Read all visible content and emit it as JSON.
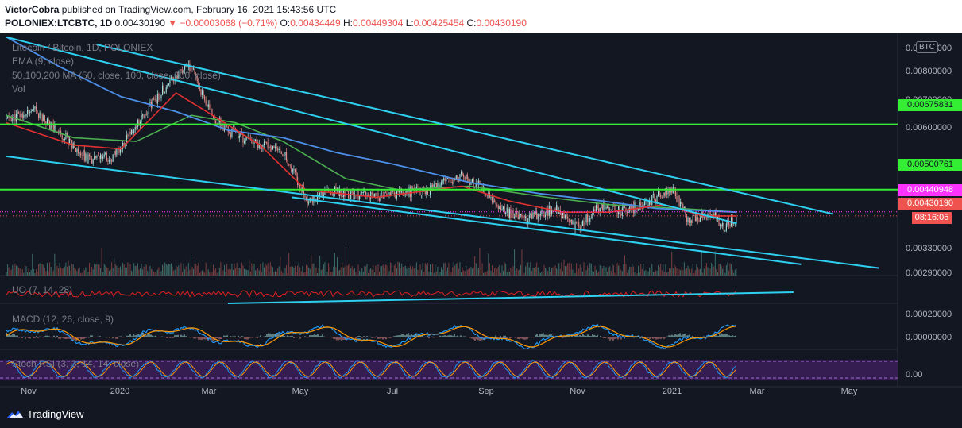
{
  "header": {
    "author": "VictorCobra",
    "published_text": " published on TradingView.com, February 16, 2021 15:43:56 UTC",
    "symbol": "POLONIEX:LTCBTC, 1D",
    "last_price": "0.00430190",
    "change": "▼ −0.00003068 (−0.71%)",
    "ohlc": {
      "o_label": "O:",
      "o": "0.00434449",
      "h_label": "H:",
      "h": "0.00449304",
      "l_label": "L:",
      "l": "0.00425454",
      "c_label": "C:",
      "c": "0.00430190"
    }
  },
  "legends": {
    "title": "Litecoin / Bitcoin, 1D, POLONIEX",
    "ema": "EMA (9, close)",
    "ma": "50,100,200 MA (50, close, 100, close, 200, close)",
    "vol": "Vol",
    "uo": "UO (7, 14, 28)",
    "macd": "MACD (12, 26, close, 9)",
    "stoch": "Stoch RSI (3, 3, 14, 14, close)"
  },
  "price_tags": {
    "h1": "0.00675831",
    "h2": "0.00500761",
    "ma_tag": "0.00440948",
    "last": "0.00430190",
    "countdown": "08:16:05"
  },
  "currency_badge": "BTC",
  "footer": {
    "brand": "TradingView"
  },
  "colors": {
    "background": "#131722",
    "ema": "#e03030",
    "ma50": "#4caf50",
    "ma100": "#4c8fe8",
    "trend": "#2ed0f0",
    "level": "#33ee33",
    "magenta": "#ff33ff",
    "up": "#a7e3df",
    "down": "#e48a86"
  },
  "chart_data": {
    "type": "candlestick",
    "price_axis_ticks": [
      "0.00900000",
      "0.00800000",
      "0.00700000",
      "0.00600000",
      "0.00500000",
      "0.00330000",
      "0.00290000"
    ],
    "macd_axis_ticks": [
      "0.00020000",
      "0.00000000"
    ],
    "stoch_axis_ticks": [
      "0.00"
    ],
    "time_axis_labels": [
      "Nov",
      "2020",
      "Mar",
      "May",
      "Jul",
      "Sep",
      "Nov",
      "2021",
      "Mar",
      "May"
    ],
    "horizontal_levels": [
      0.00675831,
      0.00500761
    ],
    "ma_level": 0.00440948,
    "ylim": [
      0.0027,
      0.0092
    ],
    "price_path": [
      {
        "d": "2019-10-27",
        "p": 0.0069
      },
      {
        "d": "2019-11-15",
        "p": 0.0071
      },
      {
        "d": "2019-12-05",
        "p": 0.0064
      },
      {
        "d": "2019-12-20",
        "p": 0.0058
      },
      {
        "d": "2020-01-05",
        "p": 0.0059
      },
      {
        "d": "2020-01-25",
        "p": 0.007
      },
      {
        "d": "2020-02-12",
        "p": 0.008
      },
      {
        "d": "2020-02-25",
        "p": 0.0083
      },
      {
        "d": "2020-03-08",
        "p": 0.0071
      },
      {
        "d": "2020-03-18",
        "p": 0.0066
      },
      {
        "d": "2020-04-05",
        "p": 0.0063
      },
      {
        "d": "2020-04-25",
        "p": 0.006
      },
      {
        "d": "2020-05-12",
        "p": 0.0047
      },
      {
        "d": "2020-05-25",
        "p": 0.005
      },
      {
        "d": "2020-06-20",
        "p": 0.0048
      },
      {
        "d": "2020-07-10",
        "p": 0.0049
      },
      {
        "d": "2020-07-30",
        "p": 0.005
      },
      {
        "d": "2020-08-20",
        "p": 0.0054
      },
      {
        "d": "2020-09-01",
        "p": 0.0051
      },
      {
        "d": "2020-09-12",
        "p": 0.0045
      },
      {
        "d": "2020-10-01",
        "p": 0.0042
      },
      {
        "d": "2020-10-20",
        "p": 0.0045
      },
      {
        "d": "2020-11-03",
        "p": 0.004
      },
      {
        "d": "2020-11-20",
        "p": 0.0046
      },
      {
        "d": "2020-12-05",
        "p": 0.0044
      },
      {
        "d": "2020-12-25",
        "p": 0.0048
      },
      {
        "d": "2021-01-05",
        "p": 0.005
      },
      {
        "d": "2021-01-15",
        "p": 0.0042
      },
      {
        "d": "2021-01-30",
        "p": 0.0044
      },
      {
        "d": "2021-02-08",
        "p": 0.004
      },
      {
        "d": "2021-02-16",
        "p": 0.0043
      }
    ],
    "ema_path": [
      {
        "d": "2019-10-27",
        "p": 0.0068
      },
      {
        "d": "2019-12-10",
        "p": 0.0062
      },
      {
        "d": "2020-01-10",
        "p": 0.0061
      },
      {
        "d": "2020-02-15",
        "p": 0.0076
      },
      {
        "d": "2020-03-10",
        "p": 0.007
      },
      {
        "d": "2020-04-10",
        "p": 0.0062
      },
      {
        "d": "2020-05-10",
        "p": 0.005
      },
      {
        "d": "2020-06-25",
        "p": 0.0048
      },
      {
        "d": "2020-08-20",
        "p": 0.0051
      },
      {
        "d": "2020-09-20",
        "p": 0.0047
      },
      {
        "d": "2020-10-25",
        "p": 0.0044
      },
      {
        "d": "2020-11-25",
        "p": 0.0044
      },
      {
        "d": "2020-12-30",
        "p": 0.0046
      },
      {
        "d": "2021-01-25",
        "p": 0.0043
      },
      {
        "d": "2021-02-16",
        "p": 0.0043
      }
    ],
    "ma50_path": [
      {
        "d": "2019-10-27",
        "p": 0.007
      },
      {
        "d": "2019-12-10",
        "p": 0.0064
      },
      {
        "d": "2020-01-20",
        "p": 0.0063
      },
      {
        "d": "2020-02-25",
        "p": 0.007
      },
      {
        "d": "2020-03-25",
        "p": 0.0068
      },
      {
        "d": "2020-04-25",
        "p": 0.0063
      },
      {
        "d": "2020-06-05",
        "p": 0.0053
      },
      {
        "d": "2020-07-10",
        "p": 0.005
      },
      {
        "d": "2020-08-25",
        "p": 0.0051
      },
      {
        "d": "2020-10-15",
        "p": 0.0048
      },
      {
        "d": "2020-11-25",
        "p": 0.0046
      },
      {
        "d": "2021-01-10",
        "p": 0.0045
      },
      {
        "d": "2021-02-16",
        "p": 0.0044
      }
    ],
    "ma100_path": [
      {
        "d": "2019-10-27",
        "p": 0.0091
      },
      {
        "d": "2019-12-01",
        "p": 0.0083
      },
      {
        "d": "2020-01-10",
        "p": 0.0075
      },
      {
        "d": "2020-02-15",
        "p": 0.0071
      },
      {
        "d": "2020-03-20",
        "p": 0.0066
      },
      {
        "d": "2020-04-25",
        "p": 0.0064
      },
      {
        "d": "2020-05-30",
        "p": 0.006
      },
      {
        "d": "2020-07-05",
        "p": 0.0057
      },
      {
        "d": "2020-08-25",
        "p": 0.0052
      },
      {
        "d": "2020-10-10",
        "p": 0.0049
      },
      {
        "d": "2020-11-20",
        "p": 0.0047
      },
      {
        "d": "2020-12-25",
        "p": 0.0045
      },
      {
        "d": "2021-02-16",
        "p": 0.0044
      }
    ],
    "trendlines": [
      {
        "from": {
          "d": "2019-10-27",
          "p": 0.0091
        },
        "to": {
          "d": "2021-02-16",
          "p": 0.0041
        }
      },
      {
        "from": {
          "d": "2019-12-25",
          "p": 0.0089
        },
        "to": {
          "d": "2021-04-20",
          "p": 0.00435
        }
      },
      {
        "from": {
          "d": "2019-10-27",
          "p": 0.0059
        },
        "to": {
          "d": "2021-05-20",
          "p": 0.0029
        }
      },
      {
        "from": {
          "d": "2020-05-01",
          "p": 0.0048
        },
        "to": {
          "d": "2021-03-30",
          "p": 0.003
        }
      }
    ]
  }
}
